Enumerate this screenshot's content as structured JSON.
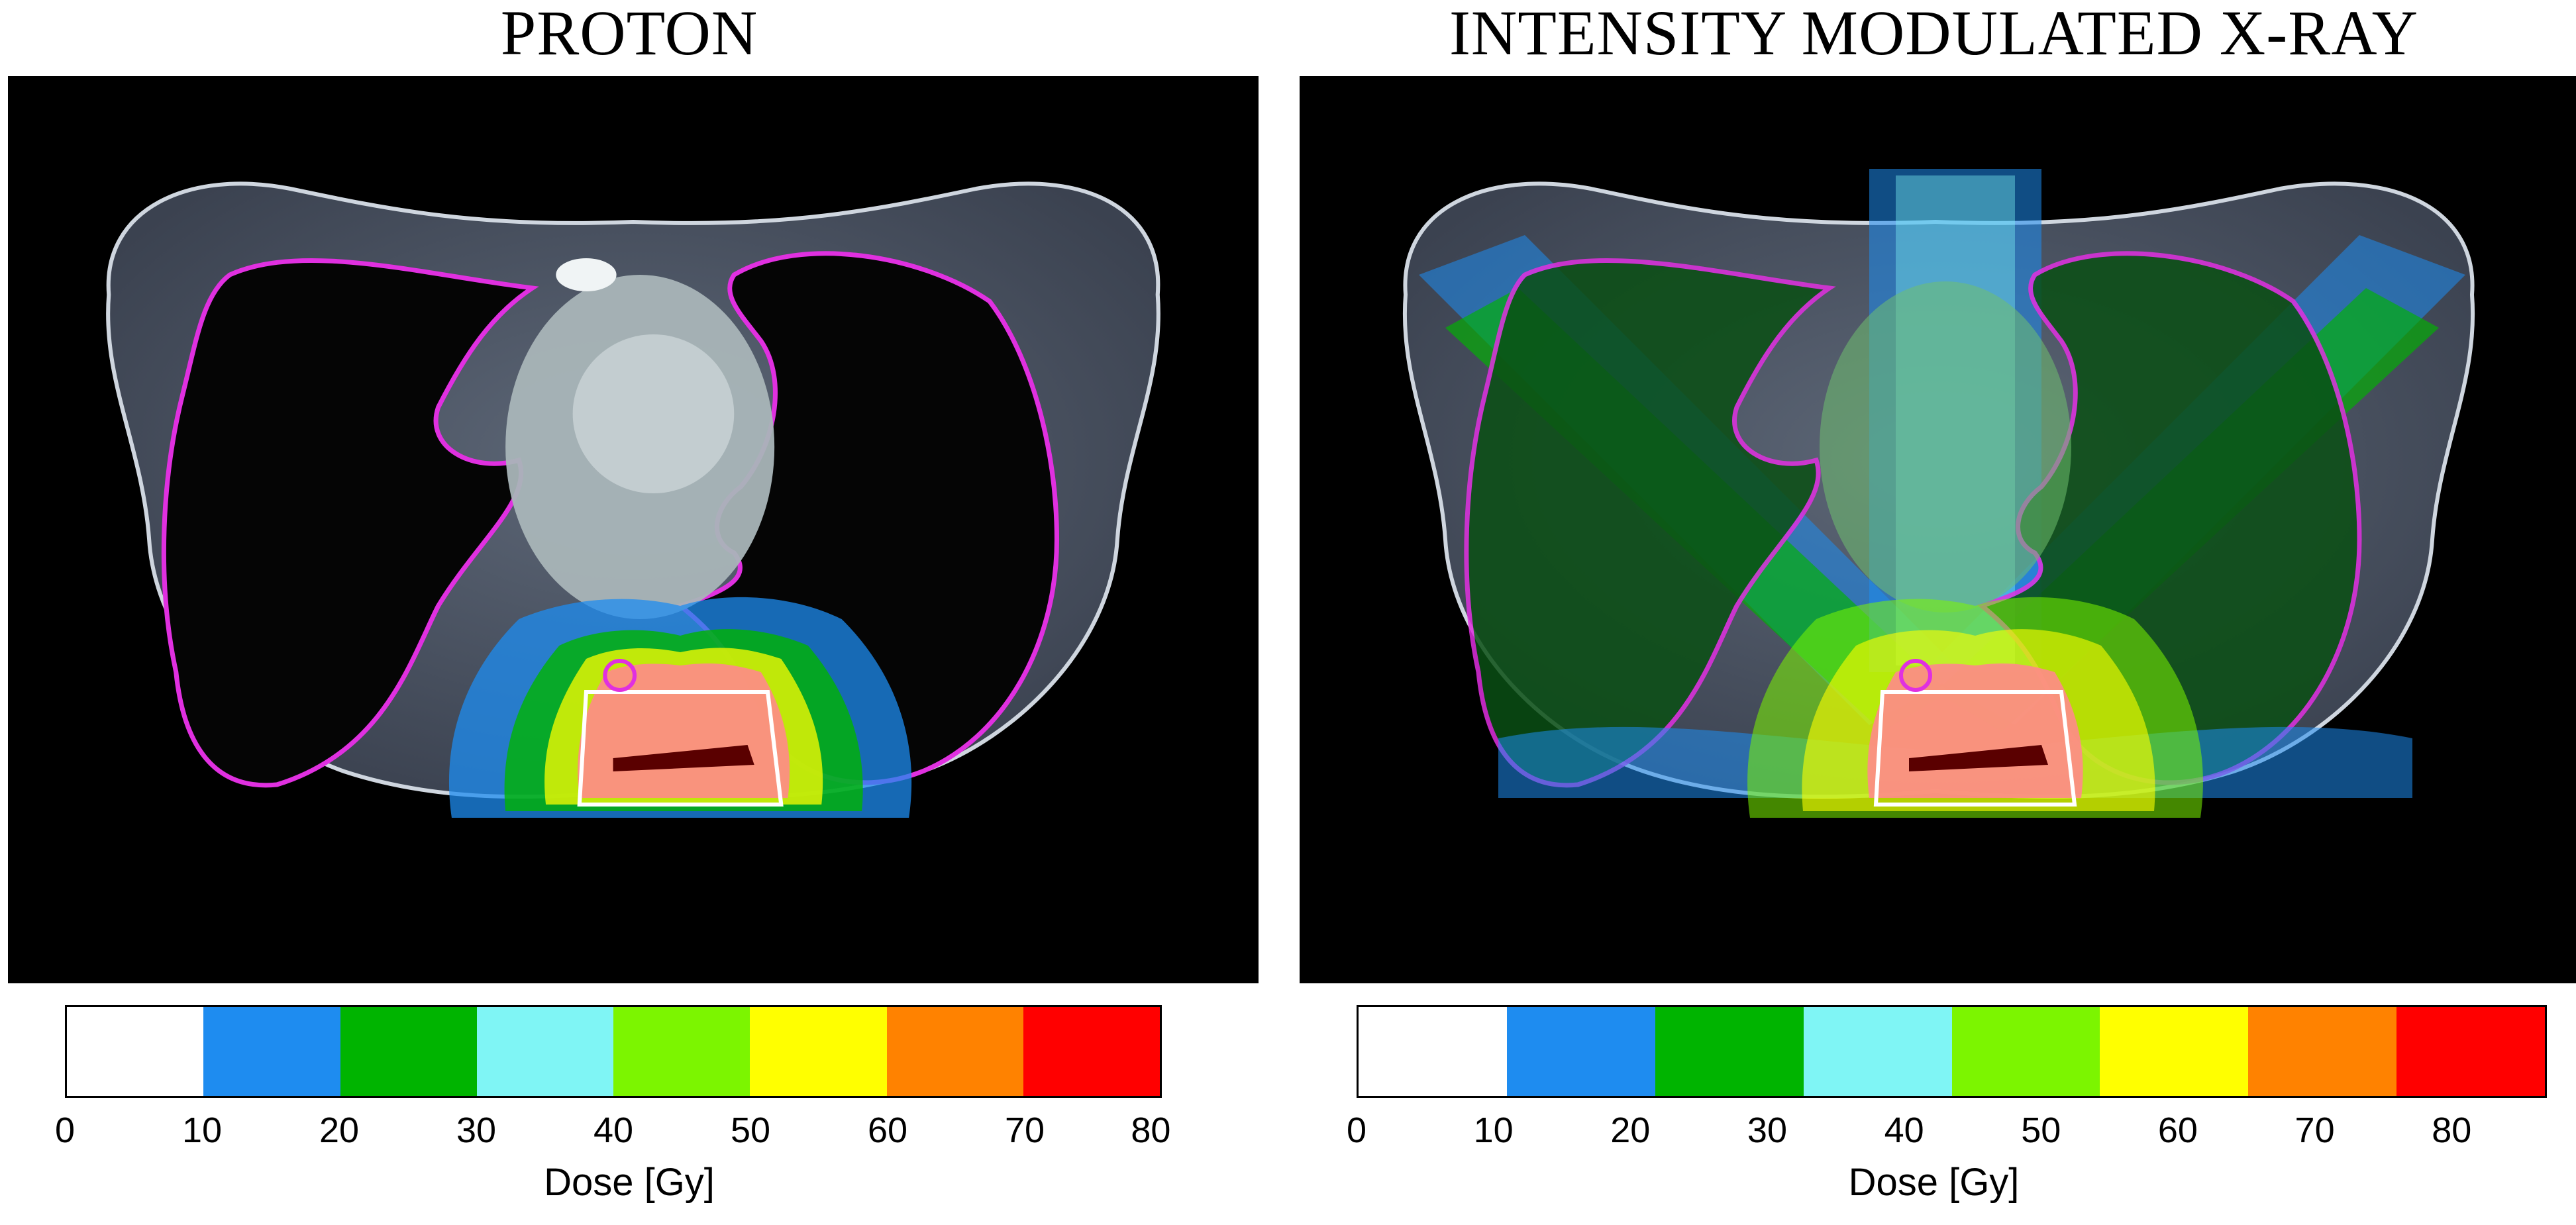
{
  "panels": [
    {
      "title": "PROTON"
    },
    {
      "title": "INTENSITY MODULATED X-RAY"
    }
  ],
  "colorbar": {
    "colors": [
      "#ffffff",
      "#1e8cf0",
      "#00b400",
      "#7ff5f5",
      "#7cf500",
      "#ffff00",
      "#ff8200",
      "#ff0000"
    ],
    "ticks": [
      "0",
      "10",
      "20",
      "30",
      "40",
      "50",
      "60",
      "70",
      "80"
    ],
    "label": "Dose [Gy]"
  }
}
